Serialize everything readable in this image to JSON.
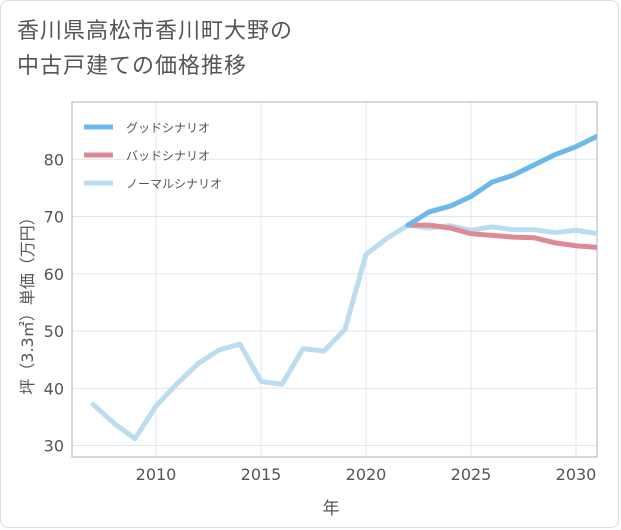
{
  "title_line1": "香川県高松市香川町大野の",
  "title_line2": "中古戸建ての価格推移",
  "chart_data": {
    "type": "line",
    "xlabel": "年",
    "ylabel": "坪（3.3㎡）単価（万円）",
    "xlim": [
      2006,
      2031
    ],
    "ylim": [
      28,
      90
    ],
    "x_ticks": [
      2010,
      2015,
      2020,
      2025,
      2030
    ],
    "y_ticks": [
      30,
      40,
      50,
      60,
      70,
      80
    ],
    "grid": true,
    "legend_position": "top-left",
    "series": [
      {
        "name": "グッドシナリオ",
        "color": "#6cb8ea",
        "x": [
          2022,
          2023,
          2024,
          2025,
          2026,
          2027,
          2028,
          2029,
          2030,
          2031
        ],
        "values": [
          68.5,
          70.8,
          71.8,
          73.5,
          76.0,
          77.2,
          79.0,
          80.8,
          82.2,
          84.0
        ]
      },
      {
        "name": "バッドシナリオ",
        "color": "#de8a93",
        "x": [
          2022,
          2023,
          2024,
          2025,
          2026,
          2027,
          2028,
          2029,
          2030,
          2031
        ],
        "values": [
          68.5,
          68.5,
          68.0,
          67.0,
          66.7,
          66.4,
          66.3,
          65.4,
          64.9,
          64.6
        ]
      },
      {
        "name": "ノーマルシナリオ",
        "color": "#bcdcf0",
        "x": [
          2007,
          2008,
          2009,
          2010,
          2011,
          2012,
          2013,
          2014,
          2015,
          2016,
          2017,
          2018,
          2019,
          2020,
          2021,
          2022,
          2023,
          2024,
          2025,
          2026,
          2027,
          2028,
          2029,
          2030,
          2031
        ],
        "values": [
          37.2,
          33.9,
          31.2,
          36.9,
          40.8,
          44.3,
          46.7,
          47.7,
          41.2,
          40.7,
          46.9,
          46.5,
          50.3,
          63.4,
          66.2,
          68.5,
          68.0,
          68.4,
          67.6,
          68.2,
          67.7,
          67.7,
          67.2,
          67.6,
          67.0
        ]
      }
    ]
  }
}
